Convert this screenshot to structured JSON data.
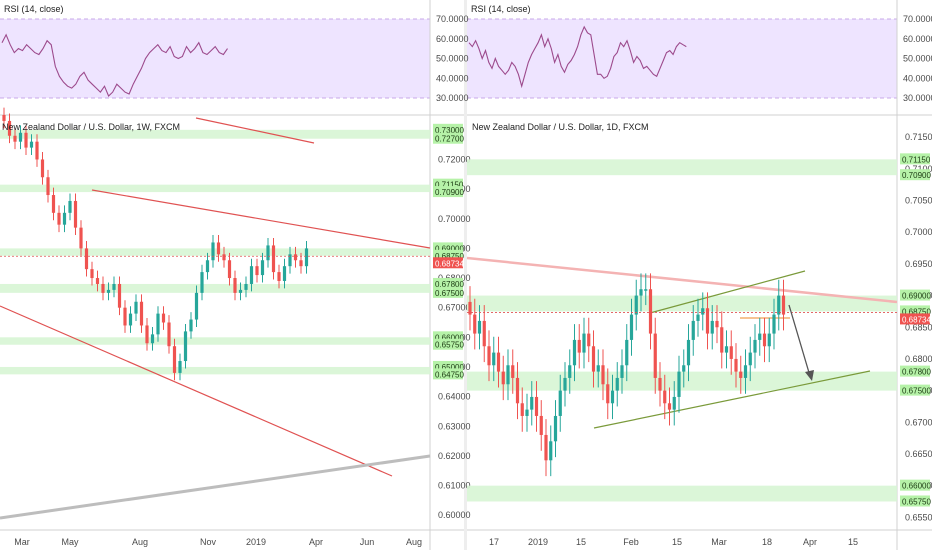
{
  "chart_data": [
    {
      "type": "candlestick",
      "title": "New Zealand Dollar / U.S. Dollar, 1W, FXCM",
      "indicator": {
        "label": "RSI (14, close)",
        "ticks": [
          "70.0000",
          "60.0000",
          "50.0000",
          "40.0000",
          "30.0000"
        ],
        "band": [
          30,
          70
        ]
      },
      "price_ticks": [
        "0.72000",
        "0.71000",
        "0.70000",
        "0.69000",
        "0.68000",
        "0.67000",
        "0.66000",
        "0.65000",
        "0.64000",
        "0.63000",
        "0.62000",
        "0.61000",
        "0.60000"
      ],
      "price_range": [
        0.595,
        0.735
      ],
      "level_tags": [
        "0.73000",
        "0.72700",
        "0.71150",
        "0.70900",
        "0.69000",
        "0.68750",
        "0.68734",
        "0.67800",
        "0.67500",
        "0.66000",
        "0.65750",
        "0.65000",
        "0.64750"
      ],
      "current_price": "0.68734",
      "x_labels": [
        "Mar",
        "May",
        "Aug",
        "Nov",
        "2019",
        "Apr",
        "Jun",
        "Aug"
      ],
      "zones": [
        [
          0.727,
          0.73
        ],
        [
          0.709,
          0.7115
        ],
        [
          0.6875,
          0.69
        ],
        [
          0.675,
          0.678
        ],
        [
          0.6575,
          0.66
        ],
        [
          0.6475,
          0.65
        ]
      ],
      "close_series": [
        0.733,
        0.728,
        0.726,
        0.729,
        0.724,
        0.726,
        0.72,
        0.714,
        0.708,
        0.702,
        0.698,
        0.702,
        0.706,
        0.697,
        0.69,
        0.683,
        0.68,
        0.678,
        0.675,
        0.676,
        0.678,
        0.67,
        0.664,
        0.668,
        0.672,
        0.664,
        0.658,
        0.661,
        0.668,
        0.665,
        0.657,
        0.648,
        0.652,
        0.662,
        0.666,
        0.675,
        0.682,
        0.686,
        0.692,
        0.688,
        0.686,
        0.68,
        0.675,
        0.676,
        0.678,
        0.684,
        0.681,
        0.686,
        0.691,
        0.682,
        0.679,
        0.684,
        0.688,
        0.686,
        0.684,
        0.69
      ],
      "rsi": [
        58,
        62,
        57,
        53,
        55,
        54,
        57,
        55,
        53,
        52,
        55,
        59,
        57,
        46,
        41,
        38,
        36,
        35,
        37,
        41,
        43,
        39,
        37,
        35,
        33,
        36,
        31,
        33,
        37,
        35,
        33,
        32,
        37,
        41,
        45,
        50,
        53,
        55,
        57,
        54,
        53,
        56,
        51,
        50,
        51,
        56,
        53,
        55,
        58,
        53,
        52,
        54,
        56,
        53,
        52,
        55
      ]
    },
    {
      "type": "candlestick",
      "title": "New Zealand Dollar / U.S. Dollar, 1D, FXCM",
      "indicator": {
        "label": "RSI (14, close)",
        "ticks": [
          "70.0000",
          "60.0000",
          "50.0000",
          "40.0000",
          "30.0000"
        ],
        "band": [
          30,
          70
        ]
      },
      "price_ticks": [
        "0.71500",
        "0.71000",
        "0.70500",
        "0.70000",
        "0.69500",
        "0.69000",
        "0.68500",
        "0.68000",
        "0.67500",
        "0.67000",
        "0.66500",
        "0.66000",
        "0.65500"
      ],
      "price_range": [
        0.653,
        0.7185
      ],
      "level_tags": [
        "0.71150",
        "0.70900",
        "0.69000",
        "0.68750",
        "0.68734",
        "0.67800",
        "0.67500",
        "0.66000",
        "0.65750"
      ],
      "current_price": "0.68734",
      "x_labels": [
        "17",
        "2019",
        "15",
        "Feb",
        "15",
        "Mar",
        "18",
        "Apr",
        "15"
      ],
      "zones": [
        [
          0.709,
          0.7115
        ],
        [
          0.6875,
          0.69
        ],
        [
          0.675,
          0.678
        ],
        [
          0.6575,
          0.66
        ]
      ],
      "close_series": [
        0.687,
        0.684,
        0.686,
        0.682,
        0.679,
        0.681,
        0.678,
        0.676,
        0.679,
        0.677,
        0.673,
        0.671,
        0.672,
        0.674,
        0.671,
        0.668,
        0.664,
        0.667,
        0.671,
        0.675,
        0.677,
        0.679,
        0.683,
        0.681,
        0.684,
        0.682,
        0.678,
        0.679,
        0.676,
        0.673,
        0.675,
        0.677,
        0.679,
        0.683,
        0.687,
        0.69,
        0.691,
        0.691,
        0.684,
        0.677,
        0.675,
        0.673,
        0.672,
        0.674,
        0.678,
        0.679,
        0.683,
        0.686,
        0.687,
        0.688,
        0.684,
        0.686,
        0.685,
        0.681,
        0.682,
        0.68,
        0.678,
        0.677,
        0.679,
        0.681,
        0.683,
        0.684,
        0.682,
        0.684,
        0.687,
        0.69,
        0.687
      ],
      "rsi": [
        58,
        56,
        59,
        55,
        50,
        54,
        48,
        45,
        50,
        46,
        44,
        42,
        44,
        48,
        46,
        42,
        36,
        42,
        48,
        52,
        55,
        58,
        62,
        56,
        60,
        55,
        48,
        52,
        46,
        43,
        47,
        49,
        52,
        56,
        62,
        66,
        63,
        62,
        52,
        42,
        42,
        40,
        41,
        45,
        51,
        53,
        58,
        56,
        59,
        54,
        48,
        51,
        49,
        45,
        46,
        44,
        42,
        41,
        45,
        49,
        53,
        54,
        52,
        56,
        58,
        57,
        56
      ]
    }
  ]
}
